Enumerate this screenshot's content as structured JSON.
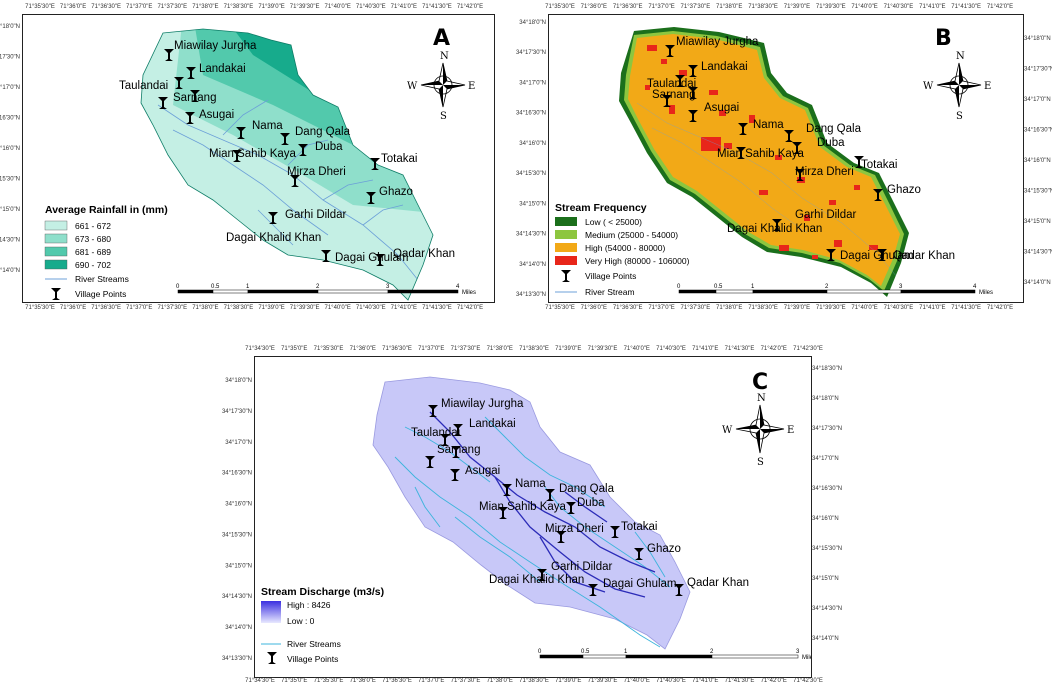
{
  "compass": {
    "n": "N",
    "s": "S",
    "e": "E",
    "w": "W"
  },
  "villages": [
    "Miawilay Jurgha",
    "Landakai",
    "Taulandai",
    "Sarnang",
    "Asugai",
    "Nama",
    "Dang Qala",
    "Duba",
    "Mian Sahib Kaya",
    "Totakai",
    "Mirza Dheri",
    "Ghazo",
    "Garhi Dildar",
    "Dagai Khalid Khan",
    "Dagai Ghulam",
    "Qadar Khan"
  ],
  "panels": {
    "A": {
      "letter": "A",
      "top_coords": [
        "71°35'30\"E",
        "71°36'0\"E",
        "71°36'30\"E",
        "71°37'0\"E",
        "71°37'30\"E",
        "71°38'0\"E",
        "71°38'30\"E",
        "71°39'0\"E",
        "71°39'30\"E",
        "71°40'0\"E",
        "71°40'30\"E",
        "71°41'0\"E",
        "71°41'30\"E",
        "71°42'0\"E"
      ],
      "bottom_coords": [
        "71°35'30\"E",
        "71°36'0\"E",
        "71°36'30\"E",
        "71°37'0\"E",
        "71°37'30\"E",
        "71°38'0\"E",
        "71°38'30\"E",
        "71°39'0\"E",
        "71°39'30\"E",
        "71°40'0\"E",
        "71°40'30\"E",
        "71°41'0\"E",
        "71°41'30\"E",
        "71°42'0\"E"
      ],
      "left_coords": [
        "34°18'0\"N",
        "34°17'30\"N",
        "34°17'0\"N",
        "34°16'30\"N",
        "34°16'0\"N",
        "34°15'30\"N",
        "34°15'0\"N",
        "34°14'30\"N",
        "34°14'0\"N"
      ],
      "legend": {
        "title": "Average Rainfall in (mm)",
        "classes": [
          {
            "label": "661 - 672",
            "color": "#c4efe4"
          },
          {
            "label": "673 - 680",
            "color": "#8fdfcb"
          },
          {
            "label": "681 - 689",
            "color": "#52c9ac"
          },
          {
            "label": "690 - 702",
            "color": "#17ab8c"
          }
        ],
        "stream_label": "River Streams",
        "village_label": "Village Points"
      },
      "scale": {
        "ticks": [
          "0",
          "0.5",
          "1",
          "2",
          "3",
          "4"
        ],
        "unit": "Miles"
      }
    },
    "B": {
      "letter": "B",
      "top_coords": [
        "71°35'30\"E",
        "71°36'0\"E",
        "71°36'30\"E",
        "71°37'0\"E",
        "71°37'30\"E",
        "71°38'0\"E",
        "71°38'30\"E",
        "71°39'0\"E",
        "71°39'30\"E",
        "71°40'0\"E",
        "71°40'30\"E",
        "71°41'0\"E",
        "71°41'30\"E",
        "71°42'0\"E"
      ],
      "bottom_coords": [
        "71°35'30\"E",
        "71°36'0\"E",
        "71°36'30\"E",
        "71°37'0\"E",
        "71°37'30\"E",
        "71°38'0\"E",
        "71°38'30\"E",
        "71°39'0\"E",
        "71°39'30\"E",
        "71°40'0\"E",
        "71°40'30\"E",
        "71°41'0\"E",
        "71°41'30\"E",
        "71°42'0\"E"
      ],
      "left_coords": [
        "34°18'0\"N",
        "34°17'30\"N",
        "34°17'0\"N",
        "34°16'30\"N",
        "34°16'0\"N",
        "34°15'30\"N",
        "34°15'0\"N",
        "34°14'30\"N",
        "34°14'0\"N",
        "34°13'30\"N"
      ],
      "right_coords": [
        "34°18'0\"N",
        "34°17'30\"N",
        "34°17'0\"N",
        "34°16'30\"N",
        "34°16'0\"N",
        "34°15'30\"N",
        "34°15'0\"N",
        "34°14'30\"N",
        "34°14'0\"N"
      ],
      "legend": {
        "title": "Stream Frequency",
        "classes": [
          {
            "label": "Low ( < 25000)",
            "color": "#1b6f1b"
          },
          {
            "label": "Medium (25000 - 54000)",
            "color": "#8dc63f"
          },
          {
            "label": "High (54000 - 80000)",
            "color": "#f2a917"
          },
          {
            "label": "Very High (80000 - 106000)",
            "color": "#e8261a"
          }
        ],
        "village_label": "Village Points",
        "stream_label": "River Stream"
      },
      "scale": {
        "ticks": [
          "0",
          "0.5",
          "1",
          "2",
          "3",
          "4"
        ],
        "unit": "Miles"
      }
    },
    "C": {
      "letter": "C",
      "top_coords": [
        "71°34'30\"E",
        "71°35'0\"E",
        "71°35'30\"E",
        "71°36'0\"E",
        "71°36'30\"E",
        "71°37'0\"E",
        "71°37'30\"E",
        "71°38'0\"E",
        "71°38'30\"E",
        "71°39'0\"E",
        "71°39'30\"E",
        "71°40'0\"E",
        "71°40'30\"E",
        "71°41'0\"E",
        "71°41'30\"E",
        "71°42'0\"E",
        "71°42'30\"E"
      ],
      "bottom_coords": [
        "71°34'30\"E",
        "71°35'0\"E",
        "71°35'30\"E",
        "71°36'0\"E",
        "71°36'30\"E",
        "71°37'0\"E",
        "71°37'30\"E",
        "71°38'0\"E",
        "71°38'30\"E",
        "71°39'0\"E",
        "71°39'30\"E",
        "71°40'0\"E",
        "71°40'30\"E",
        "71°41'0\"E",
        "71°41'30\"E",
        "71°42'0\"E",
        "71°42'30\"E"
      ],
      "left_coords": [
        "34°18'0\"N",
        "34°17'30\"N",
        "34°17'0\"N",
        "34°16'30\"N",
        "34°16'0\"N",
        "34°15'30\"N",
        "34°15'0\"N",
        "34°14'30\"N",
        "34°14'0\"N",
        "34°13'30\"N"
      ],
      "right_coords": [
        "34°18'30\"N",
        "34°18'0\"N",
        "34°17'30\"N",
        "34°17'0\"N",
        "34°16'30\"N",
        "34°16'0\"N",
        "34°15'30\"N",
        "34°15'0\"N",
        "34°14'30\"N",
        "34°14'0\"N"
      ],
      "legend": {
        "title": "Stream Discharge (m3/s)",
        "high": "High : 8426",
        "low": "Low : 0",
        "stream_label": "River Streams",
        "village_label": "Village Points",
        "color_high": "#3b2fe0",
        "color_low": "#e8e8ff"
      },
      "scale": {
        "ticks": [
          "0",
          "0.5",
          "1",
          "2",
          "3"
        ],
        "unit": "Miles"
      }
    }
  }
}
